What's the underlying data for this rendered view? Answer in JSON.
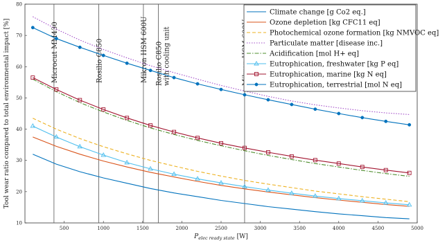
{
  "chart_data": {
    "type": "line",
    "xlabel": "P",
    "xlabel_sub": "elec ready state",
    "xlabel_unit": " [W]",
    "ylabel": "Tool wear ratio compared to total environmental impact [%]",
    "xlim": [
      0,
      5000
    ],
    "ylim": [
      10,
      80
    ],
    "xticks": [
      500,
      1000,
      1500,
      2000,
      2500,
      3000,
      3500,
      4000,
      4500,
      5000
    ],
    "yticks": [
      10,
      20,
      30,
      40,
      50,
      60,
      70,
      80
    ],
    "grid": false,
    "legend_position": "top-right",
    "vertical_lines": [
      {
        "x": 370,
        "label": "Microcut MM430"
      },
      {
        "x": 940,
        "label": "Rosilio C850"
      },
      {
        "x": 1510,
        "label": "Mikron HSM 600U"
      },
      {
        "x": 1700,
        "label": "Rosilio C850",
        "label2": "with cooling unit"
      },
      {
        "x": 2800,
        "label": "Mikron HSM 600U",
        "label2": "with cooling unit"
      }
    ],
    "x": [
      100,
      400,
      700,
      1000,
      1300,
      1600,
      1900,
      2200,
      2500,
      2800,
      3100,
      3400,
      3700,
      4000,
      4300,
      4600,
      4900
    ],
    "series": [
      {
        "name": "Climate change [g Co2 eq.]",
        "color": "#0072BD",
        "style": "solid",
        "marker": "none",
        "values": [
          32.0,
          28.8,
          26.4,
          24.4,
          22.7,
          21.0,
          19.6,
          18.4,
          17.2,
          16.2,
          15.2,
          14.4,
          13.6,
          12.9,
          12.3,
          11.7,
          11.3
        ]
      },
      {
        "name": "Ozone depletion [kg CFC11 eq]",
        "color": "#D95319",
        "style": "solid",
        "marker": "none",
        "values": [
          37.5,
          34.5,
          32.0,
          29.8,
          27.9,
          26.2,
          24.7,
          23.3,
          22.0,
          20.9,
          19.9,
          19.0,
          18.1,
          17.3,
          16.6,
          15.9,
          15.3
        ]
      },
      {
        "name": "Photochemical ozone formation [kg NMVOC eq]",
        "color": "#EDB120",
        "style": "dashed",
        "marker": "none",
        "values": [
          43.5,
          40.0,
          37.0,
          34.4,
          32.1,
          30.0,
          28.2,
          26.5,
          25.0,
          23.6,
          22.4,
          21.3,
          20.2,
          19.3,
          18.4,
          17.6,
          16.8
        ]
      },
      {
        "name": "Particulate matter [disease inc.]",
        "color": "#A24CC8",
        "style": "dotted",
        "marker": "none",
        "values": [
          76.0,
          72.0,
          68.5,
          65.5,
          62.8,
          60.3,
          58.1,
          56.0,
          54.0,
          52.2,
          50.5,
          49.0,
          47.8,
          46.8,
          45.9,
          45.2,
          44.7
        ]
      },
      {
        "name": "Acidification [mol H+ eq]",
        "color": "#4C8C2B",
        "style": "dashdot",
        "marker": "none",
        "values": [
          56.0,
          52.0,
          48.5,
          45.5,
          42.8,
          40.4,
          38.3,
          36.4,
          34.7,
          33.1,
          31.6,
          30.3,
          29.0,
          27.9,
          26.8,
          25.8,
          24.9
        ]
      },
      {
        "name": "Eutrophication, freshwater [kg P eq]",
        "color": "#4DBEEE",
        "style": "solid",
        "marker": "triangle",
        "values": [
          41.0,
          37.5,
          34.4,
          31.7,
          29.3,
          27.3,
          25.6,
          24.1,
          22.8,
          21.6,
          20.5,
          19.5,
          18.6,
          17.8,
          17.1,
          16.4,
          15.8
        ]
      },
      {
        "name": "Eutrophication, marine [kg N eq]",
        "color": "#A2142F",
        "style": "solid",
        "marker": "square",
        "values": [
          56.5,
          52.7,
          49.3,
          46.3,
          43.6,
          41.2,
          39.1,
          37.2,
          35.5,
          34.0,
          32.6,
          31.3,
          30.1,
          29.0,
          27.9,
          26.9,
          26.0
        ]
      },
      {
        "name": "Eutrophication, terrestrial [mol N eq]",
        "color": "#0072BD",
        "style": "solid",
        "marker": "circle",
        "values": [
          72.5,
          69.0,
          66.2,
          63.6,
          61.1,
          58.8,
          56.5,
          54.5,
          52.7,
          51.0,
          49.4,
          47.9,
          46.4,
          45.0,
          43.7,
          42.5,
          41.4
        ]
      }
    ]
  }
}
